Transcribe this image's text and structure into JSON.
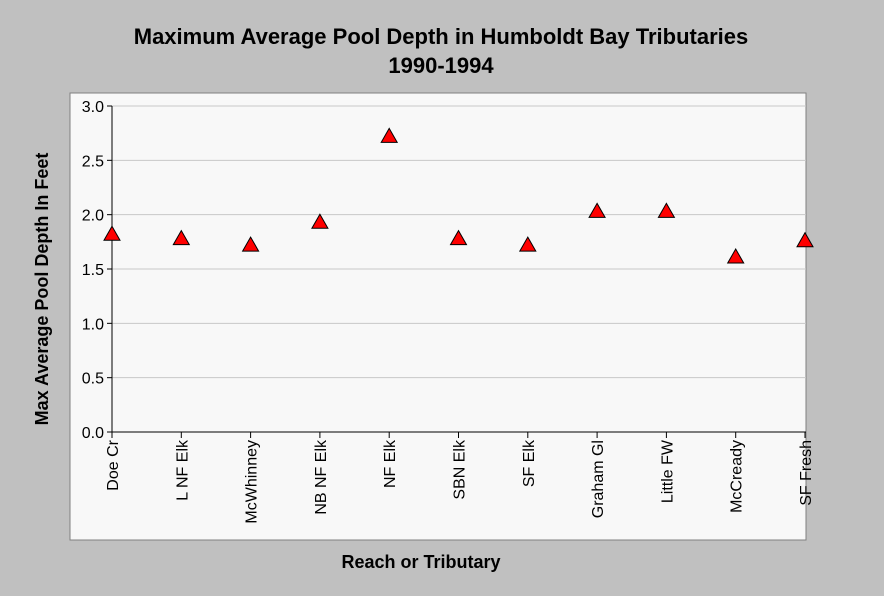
{
  "chart_data": {
    "type": "scatter",
    "title": "Maximum Average Pool Depth in Humboldt Bay Tributaries",
    "subtitle": "1990-1994",
    "xlabel": "Reach or Tributary",
    "ylabel": "Max Average Pool Depth In Feet",
    "categories": [
      "Doe Cr",
      "L NF Elk",
      "McWhinney",
      "NB NF Elk",
      "NF Elk",
      "SBN Elk",
      "SF Elk",
      "Graham Gl",
      "Little FW",
      "McCready",
      "SF Fresh"
    ],
    "values": [
      1.82,
      1.78,
      1.72,
      1.93,
      2.72,
      1.78,
      1.72,
      2.03,
      2.03,
      1.61,
      1.76
    ],
    "ylim": [
      0.0,
      3.0
    ],
    "yticks": [
      "0.0",
      "0.5",
      "1.0",
      "1.5",
      "2.0",
      "2.5",
      "3.0"
    ],
    "grid": true,
    "marker": "triangle",
    "colors": {
      "marker_fill": "#ff0000",
      "marker_stroke": "#000000",
      "plot_background": "#f8f8f8",
      "page_background": "#c0c0c0",
      "gridline": "#c8c8c8"
    }
  }
}
